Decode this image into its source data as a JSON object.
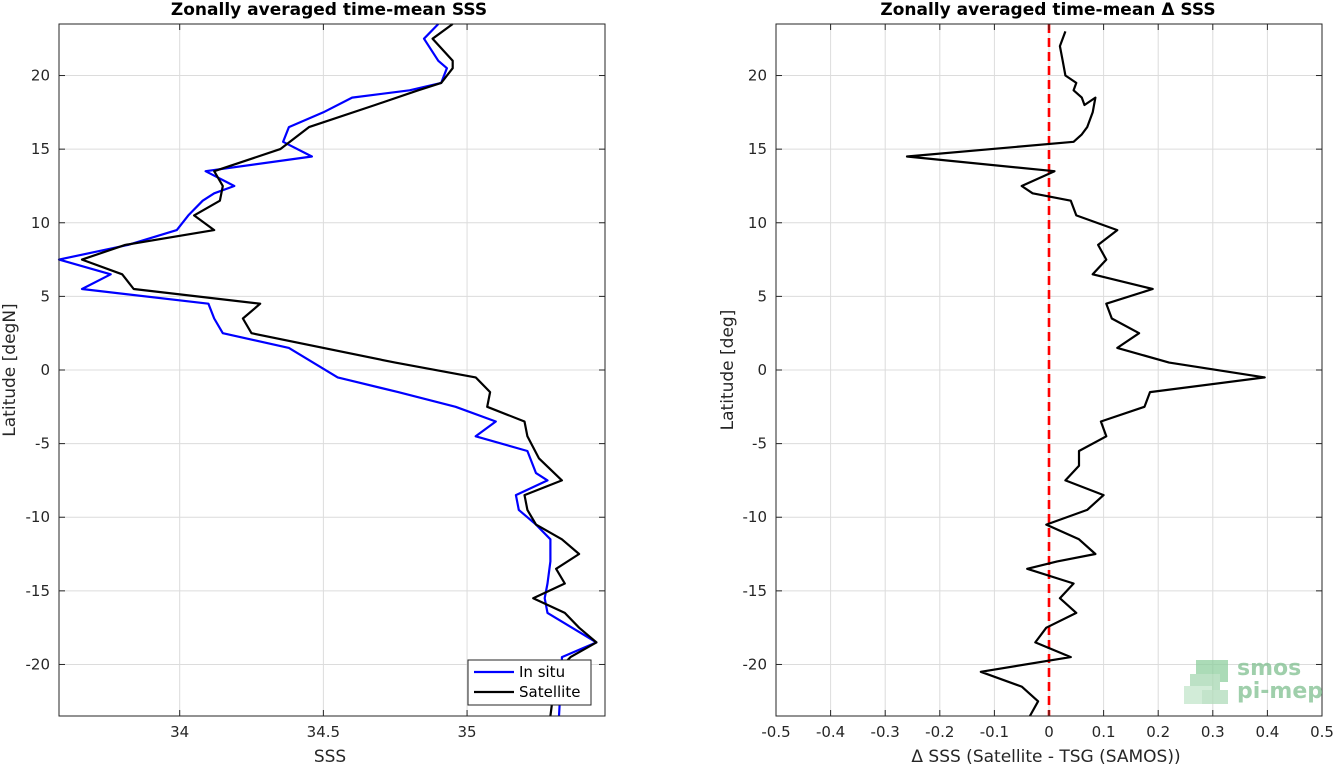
{
  "chart_data": [
    {
      "type": "line",
      "title": "Zonally averaged time-mean SSS",
      "xlabel": "SSS",
      "ylabel": "Latitude [degN]",
      "xlim": [
        33.58,
        35.48
      ],
      "ylim": [
        -23.5,
        23.5
      ],
      "xticks": [
        34,
        34.5,
        35
      ],
      "xtick_labels": [
        "34",
        "34.5",
        "35"
      ],
      "yticks": [
        -20,
        -15,
        -10,
        -5,
        0,
        5,
        10,
        15,
        20
      ],
      "ytick_labels": [
        "-20",
        "-15",
        "-10",
        "-5",
        "0",
        "5",
        "10",
        "15",
        "20"
      ],
      "grid": true,
      "legend_position": "bottom-right",
      "series": [
        {
          "name": "In situ",
          "color": "#0000ff",
          "points": [
            [
              34.9,
              23.5
            ],
            [
              34.85,
              22.5
            ],
            [
              34.9,
              21
            ],
            [
              34.93,
              20.5
            ],
            [
              34.91,
              19.5
            ],
            [
              34.8,
              19
            ],
            [
              34.6,
              18.5
            ],
            [
              34.5,
              17.5
            ],
            [
              34.38,
              16.5
            ],
            [
              34.36,
              15.5
            ],
            [
              34.46,
              14.5
            ],
            [
              34.09,
              13.5
            ],
            [
              34.19,
              12.5
            ],
            [
              34.12,
              12
            ],
            [
              34.08,
              11.5
            ],
            [
              34.03,
              10.5
            ],
            [
              33.99,
              9.5
            ],
            [
              33.82,
              8.5
            ],
            [
              33.58,
              7.5
            ],
            [
              33.76,
              6.5
            ],
            [
              33.66,
              5.5
            ],
            [
              34.1,
              4.5
            ],
            [
              34.12,
              3.5
            ],
            [
              34.15,
              2.5
            ],
            [
              34.38,
              1.5
            ],
            [
              34.55,
              -0.5
            ],
            [
              34.76,
              -1.5
            ],
            [
              34.96,
              -2.5
            ],
            [
              35.1,
              -3.5
            ],
            [
              35.03,
              -4.5
            ],
            [
              35.21,
              -5.5
            ],
            [
              35.24,
              -7
            ],
            [
              35.28,
              -7.5
            ],
            [
              35.17,
              -8.5
            ],
            [
              35.18,
              -9.5
            ],
            [
              35.24,
              -10.5
            ],
            [
              35.29,
              -11.5
            ],
            [
              35.29,
              -13
            ],
            [
              35.28,
              -14.5
            ],
            [
              35.27,
              -15.5
            ],
            [
              35.28,
              -16.5
            ],
            [
              35.45,
              -18.5
            ],
            [
              35.33,
              -19.5
            ],
            [
              35.33,
              -20
            ],
            [
              35.32,
              -23.5
            ]
          ]
        },
        {
          "name": "Satellite",
          "color": "#000000",
          "points": [
            [
              34.95,
              23.5
            ],
            [
              34.88,
              22.5
            ],
            [
              34.95,
              21
            ],
            [
              34.95,
              20.5
            ],
            [
              34.91,
              19.5
            ],
            [
              34.83,
              19
            ],
            [
              34.68,
              18
            ],
            [
              34.45,
              16.5
            ],
            [
              34.35,
              15
            ],
            [
              34.12,
              13.5
            ],
            [
              34.15,
              12.5
            ],
            [
              34.14,
              11.5
            ],
            [
              34.05,
              10.5
            ],
            [
              34.12,
              9.5
            ],
            [
              33.81,
              8.5
            ],
            [
              33.66,
              7.5
            ],
            [
              33.8,
              6.5
            ],
            [
              33.84,
              5.5
            ],
            [
              34.28,
              4.5
            ],
            [
              34.22,
              3.5
            ],
            [
              34.25,
              2.5
            ],
            [
              34.75,
              0.5
            ],
            [
              35.03,
              -0.5
            ],
            [
              35.08,
              -1.5
            ],
            [
              35.07,
              -2.5
            ],
            [
              35.2,
              -3.5
            ],
            [
              35.21,
              -4.5
            ],
            [
              35.25,
              -6
            ],
            [
              35.33,
              -7.5
            ],
            [
              35.2,
              -8.5
            ],
            [
              35.21,
              -9.5
            ],
            [
              35.24,
              -10.5
            ],
            [
              35.33,
              -11.5
            ],
            [
              35.39,
              -12.5
            ],
            [
              35.31,
              -13.5
            ],
            [
              35.34,
              -14.5
            ],
            [
              35.23,
              -15.5
            ],
            [
              35.34,
              -16.5
            ],
            [
              35.39,
              -17.5
            ],
            [
              35.45,
              -18.5
            ],
            [
              35.36,
              -19.5
            ],
            [
              35.31,
              -20.5
            ],
            [
              35.29,
              -23.5
            ]
          ]
        }
      ]
    },
    {
      "type": "line",
      "title": "Zonally averaged time-mean Δ SSS",
      "xlabel": "Δ SSS (Satellite - TSG (SAMOS))",
      "ylabel": "Latitude [deg]",
      "xlim": [
        -0.5,
        0.5
      ],
      "ylim": [
        -23.5,
        23.5
      ],
      "xticks": [
        -0.5,
        -0.4,
        -0.3,
        -0.2,
        -0.1,
        0,
        0.1,
        0.2,
        0.3,
        0.4,
        0.5
      ],
      "xtick_labels": [
        "-0.5",
        "-0.4",
        "-0.3",
        "-0.2",
        "-0.1",
        "0",
        "0.1",
        "0.2",
        "0.3",
        "0.4",
        "0.5"
      ],
      "yticks": [
        -20,
        -15,
        -10,
        -5,
        0,
        5,
        10,
        15,
        20
      ],
      "ytick_labels": [
        "-20",
        "-15",
        "-10",
        "-5",
        "0",
        "5",
        "10",
        "15",
        "20"
      ],
      "grid": true,
      "reference_line": {
        "x": 0,
        "color": "#ff0000",
        "style": "dashed"
      },
      "series": [
        {
          "name": "",
          "color": "#000000",
          "points": [
            [
              0.03,
              23
            ],
            [
              0.02,
              22
            ],
            [
              0.025,
              21
            ],
            [
              0.03,
              20
            ],
            [
              0.05,
              19.5
            ],
            [
              0.045,
              19
            ],
            [
              0.06,
              18.5
            ],
            [
              0.065,
              18
            ],
            [
              0.085,
              18.5
            ],
            [
              0.08,
              17.5
            ],
            [
              0.07,
              16.5
            ],
            [
              0.06,
              16
            ],
            [
              0.045,
              15.5
            ],
            [
              -0.26,
              14.5
            ],
            [
              0.01,
              13.5
            ],
            [
              -0.05,
              12.5
            ],
            [
              -0.03,
              12
            ],
            [
              0.04,
              11.5
            ],
            [
              0.05,
              10.5
            ],
            [
              0.125,
              9.5
            ],
            [
              0.09,
              8.5
            ],
            [
              0.105,
              7.5
            ],
            [
              0.08,
              6.5
            ],
            [
              0.19,
              5.5
            ],
            [
              0.105,
              4.5
            ],
            [
              0.115,
              3.5
            ],
            [
              0.165,
              2.5
            ],
            [
              0.125,
              1.5
            ],
            [
              0.22,
              0.5
            ],
            [
              0.395,
              -0.5
            ],
            [
              0.185,
              -1.5
            ],
            [
              0.175,
              -2.5
            ],
            [
              0.095,
              -3.5
            ],
            [
              0.105,
              -4.5
            ],
            [
              0.055,
              -5.5
            ],
            [
              0.055,
              -6.5
            ],
            [
              0.03,
              -7.5
            ],
            [
              0.1,
              -8.5
            ],
            [
              0.07,
              -9.5
            ],
            [
              -0.005,
              -10.5
            ],
            [
              0.055,
              -11.5
            ],
            [
              0.085,
              -12.5
            ],
            [
              0.015,
              -13
            ],
            [
              -0.04,
              -13.5
            ],
            [
              0.045,
              -14.5
            ],
            [
              0.02,
              -15.5
            ],
            [
              0.05,
              -16.5
            ],
            [
              -0.005,
              -17.5
            ],
            [
              -0.025,
              -18.5
            ],
            [
              0.04,
              -19.5
            ],
            [
              -0.125,
              -20.5
            ],
            [
              -0.05,
              -21.5
            ],
            [
              -0.02,
              -22.5
            ],
            [
              -0.035,
              -23.5
            ]
          ]
        }
      ]
    }
  ],
  "legend": {
    "items": [
      {
        "label": "In situ",
        "color": "#0000ff"
      },
      {
        "label": "Satellite",
        "color": "#000000"
      }
    ]
  },
  "logo": {
    "line1": "smos",
    "line2": "pi-mep",
    "color": "#7fbf8f"
  }
}
